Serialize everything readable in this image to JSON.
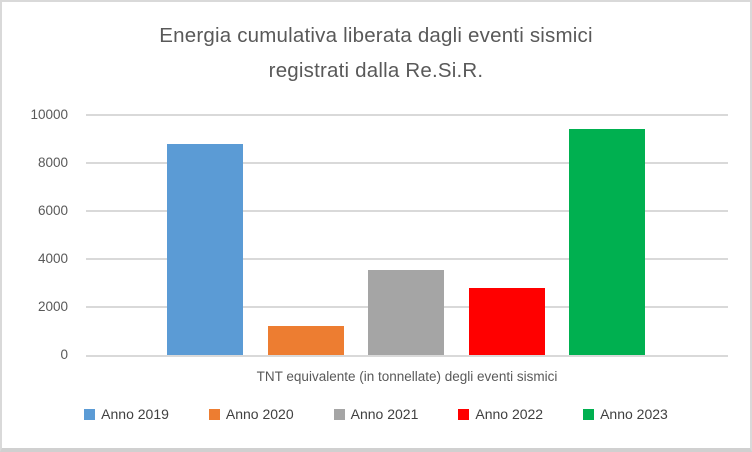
{
  "chart": {
    "title_line1": "Energia cumulativa liberata dagli eventi sismici",
    "title_line2": "registrati dalla Re.Si.R."
  },
  "chart_data": {
    "type": "bar",
    "title": "Energia cumulativa liberata dagli eventi sismici registrati dalla Re.Si.R.",
    "categories": [
      "Anno 2019",
      "Anno 2020",
      "Anno 2021",
      "Anno 2022",
      "Anno 2023"
    ],
    "values": [
      8800,
      1200,
      3550,
      2800,
      9400
    ],
    "colors": [
      "#5B9BD5",
      "#ED7D31",
      "#A5A5A5",
      "#FF0000",
      "#00B050"
    ],
    "xlabel": "TNT equivalente (in tonnellate) degli eventi sismici",
    "ylabel": "",
    "ylim": [
      0,
      10000
    ],
    "yticks": [
      0,
      2000,
      4000,
      6000,
      8000,
      10000
    ],
    "grid": true,
    "legend_position": "bottom",
    "legend": [
      "Anno 2019",
      "Anno 2020",
      "Anno 2021",
      "Anno 2022",
      "Anno 2023"
    ]
  },
  "style": {
    "grid_color": "#D9D9D9",
    "axis_text_color": "#595959",
    "legend_text_color": "#404040",
    "border_color": "#D9D9D9",
    "background": "#FFFFFF"
  }
}
